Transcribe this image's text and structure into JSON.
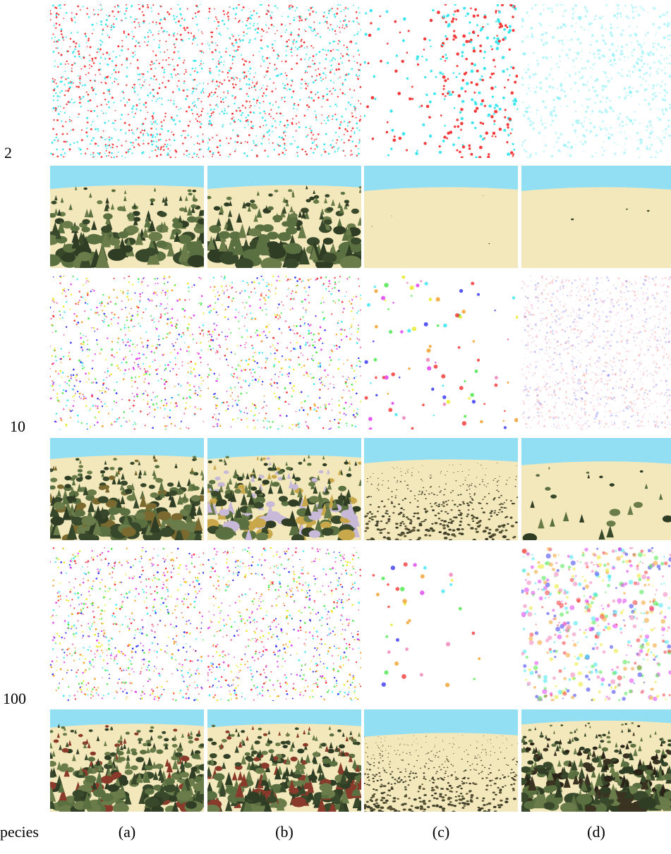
{
  "row_labels": [
    "2",
    "10",
    "100"
  ],
  "col_labels": [
    "(a)",
    "(b)",
    "(c)",
    "(d)"
  ],
  "corner_label": "pecies",
  "colors": {
    "sky": "#92def2",
    "sand": "#f3e8bb",
    "tree_dark": "#38482a",
    "tree_mid": "#5b7040",
    "point_red": "#f43a3a",
    "point_cyan": "#3fe6f0",
    "point_blue": "#3a3af4",
    "point_green": "#4ae84a",
    "point_magenta": "#e040f0",
    "point_yellow": "#eaea2a",
    "point_orange": "#f4a02a",
    "point_pink": "#f080b8"
  }
}
